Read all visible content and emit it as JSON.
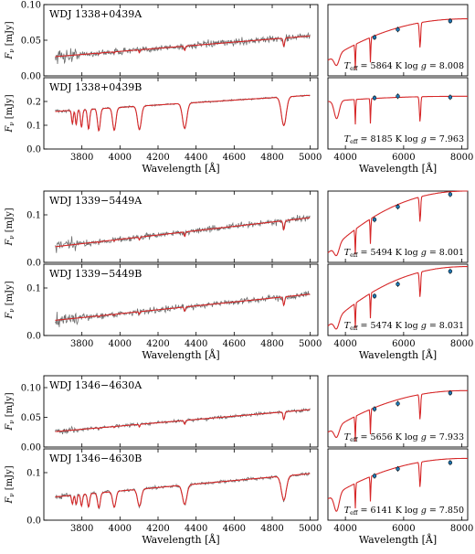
{
  "figure": {
    "left_xlabel": "Wavelength [Å]",
    "right_xlabel": "Wavelength [Å]",
    "ylabel": "F_ν [mJy]",
    "colors": {
      "model": "#d62728",
      "data": "#6e6e6e",
      "photometry": "#1f77b4"
    }
  },
  "chart_data": [
    {
      "type": "line",
      "pair": "WDJ 1338+0439",
      "spectra": [
        {
          "name": "WDJ 1338+0439A",
          "ylim": [
            0,
            0.1
          ],
          "yticks": [
            "0.00",
            "0.05",
            "0.10"
          ],
          "flux_start": 0.027,
          "flux_end": 0.056,
          "noise": 0.0045,
          "deep_lines": false,
          "teff_label": "T_eff = 5864 K  log g = 8.008",
          "teff": 5864,
          "logg": 8.008,
          "phot": [
            [
              5000,
              0.054
            ],
            [
              5800,
              0.065
            ],
            [
              7600,
              0.077
            ]
          ],
          "sed_start": 0.022,
          "sed_end": 0.08
        },
        {
          "name": "WDJ 1338+0439B",
          "ylim": [
            0,
            0.3
          ],
          "yticks": [
            "0.0",
            "0.1",
            "0.2"
          ],
          "flux_start": 0.158,
          "flux_end": 0.226,
          "noise": 0.003,
          "deep_lines": true,
          "teff_label": "T_eff = 8185 K  log g = 7.963",
          "teff": 8185,
          "logg": 7.963,
          "phot": [
            [
              5000,
              0.215
            ],
            [
              5800,
              0.222
            ],
            [
              7600,
              0.218
            ]
          ],
          "sed_start": 0.2,
          "sed_end": 0.222
        }
      ]
    },
    {
      "type": "line",
      "pair": "WDJ 1339−5449",
      "spectra": [
        {
          "name": "WDJ 1339−5449A",
          "ylim": [
            0,
            0.15
          ],
          "yticks": [
            "0.0",
            "0.1"
          ],
          "flux_start": 0.033,
          "flux_end": 0.094,
          "noise": 0.006,
          "deep_lines": false,
          "teff_label": "T_eff = 5494 K  log g = 8.001",
          "teff": 5494,
          "logg": 8.001,
          "phot": [
            [
              5000,
              0.09
            ],
            [
              5800,
              0.117
            ],
            [
              7600,
              0.143
            ]
          ],
          "sed_start": 0.02,
          "sed_end": 0.15
        },
        {
          "name": "WDJ 1339−5449B",
          "ylim": [
            0,
            0.15
          ],
          "yticks": [
            "0.0",
            "0.1"
          ],
          "flux_start": 0.032,
          "flux_end": 0.087,
          "noise": 0.006,
          "deep_lines": false,
          "teff_label": "T_eff = 5474 K  log g = 8.031",
          "teff": 5474,
          "logg": 8.031,
          "phot": [
            [
              5000,
              0.083
            ],
            [
              5800,
              0.108
            ],
            [
              7600,
              0.135
            ]
          ],
          "sed_start": 0.02,
          "sed_end": 0.145
        }
      ]
    },
    {
      "type": "line",
      "pair": "WDJ 1346−4630",
      "spectra": [
        {
          "name": "WDJ 1346−4630A",
          "ylim": [
            0,
            0.12
          ],
          "yticks": [
            "0.00",
            "0.05",
            "0.10"
          ],
          "flux_start": 0.026,
          "flux_end": 0.063,
          "noise": 0.0025,
          "deep_lines": false,
          "teff_label": "T_eff = 5656 K  log g = 7.933",
          "teff": 5656,
          "logg": 7.933,
          "phot": [
            [
              5000,
              0.064
            ],
            [
              5800,
              0.073
            ],
            [
              7600,
              0.091
            ]
          ],
          "sed_start": 0.025,
          "sed_end": 0.095
        },
        {
          "name": "WDJ 1346−4630B",
          "ylim": [
            0,
            0.15
          ],
          "yticks": [
            "0.0",
            "0.1"
          ],
          "flux_start": 0.049,
          "flux_end": 0.098,
          "noise": 0.003,
          "deep_lines": true,
          "teff_label": "T_eff = 6141 K  log g = 7.850",
          "teff": 6141,
          "logg": 7.85,
          "phot": [
            [
              5000,
              0.093
            ],
            [
              5800,
              0.108
            ],
            [
              7600,
              0.121
            ]
          ],
          "sed_start": 0.045,
          "sed_end": 0.13
        }
      ]
    }
  ],
  "axes": {
    "left_xlim": [
      3600,
      5040
    ],
    "left_xticks": [
      "3800",
      "4000",
      "4200",
      "4400",
      "4600",
      "4800",
      "5000"
    ],
    "right_xlim": [
      3400,
      8200
    ],
    "right_xticks": [
      "4000",
      "6000",
      "8000"
    ]
  }
}
